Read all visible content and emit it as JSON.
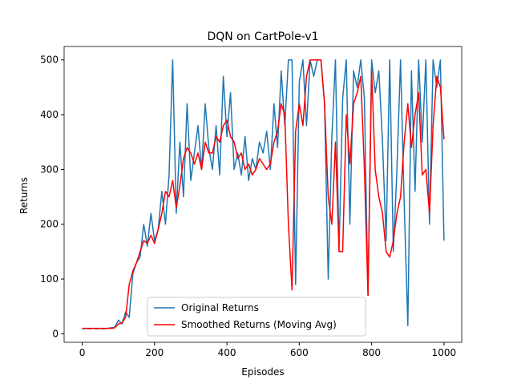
{
  "chart_data": {
    "type": "line",
    "title": "DQN on CartPole-v1",
    "xlabel": "Episodes",
    "ylabel": "Returns",
    "x": [
      0,
      10,
      20,
      30,
      40,
      50,
      60,
      70,
      80,
      90,
      100,
      110,
      120,
      130,
      140,
      150,
      160,
      170,
      180,
      190,
      200,
      210,
      220,
      230,
      240,
      250,
      260,
      270,
      280,
      290,
      300,
      310,
      320,
      330,
      340,
      350,
      360,
      370,
      380,
      390,
      400,
      410,
      420,
      430,
      440,
      450,
      460,
      470,
      480,
      490,
      500,
      510,
      520,
      530,
      540,
      550,
      560,
      570,
      580,
      590,
      600,
      610,
      620,
      630,
      640,
      650,
      660,
      670,
      680,
      690,
      700,
      710,
      720,
      730,
      740,
      750,
      760,
      770,
      780,
      790,
      800,
      810,
      820,
      830,
      840,
      850,
      860,
      870,
      880,
      890,
      900,
      910,
      920,
      930,
      940,
      950,
      960,
      970,
      980,
      990,
      1000
    ],
    "series": [
      {
        "name": "Original Returns",
        "color": "#1f77b4",
        "values": [
          9,
          10,
          9,
          10,
          9,
          10,
          9,
          10,
          11,
          12,
          25,
          18,
          40,
          30,
          110,
          130,
          140,
          200,
          160,
          220,
          170,
          190,
          260,
          200,
          290,
          500,
          220,
          350,
          250,
          420,
          280,
          330,
          380,
          300,
          420,
          340,
          300,
          380,
          290,
          470,
          360,
          440,
          300,
          330,
          290,
          360,
          280,
          320,
          300,
          350,
          330,
          370,
          300,
          420,
          340,
          480,
          380,
          500,
          500,
          90,
          460,
          500,
          380,
          500,
          470,
          500,
          500,
          420,
          100,
          360,
          500,
          150,
          430,
          500,
          200,
          480,
          450,
          500,
          430,
          70,
          500,
          440,
          480,
          350,
          170,
          500,
          150,
          300,
          500,
          240,
          15,
          480,
          260,
          500,
          350,
          500,
          200,
          500,
          450,
          500,
          170
        ]
      },
      {
        "name": "Smoothed Returns (Moving Avg)",
        "color": "#ff0000",
        "values": [
          10,
          10,
          10,
          10,
          10,
          10,
          10,
          10,
          10,
          11,
          18,
          20,
          30,
          90,
          115,
          130,
          150,
          170,
          165,
          180,
          165,
          190,
          220,
          260,
          250,
          280,
          230,
          270,
          320,
          340,
          330,
          310,
          330,
          300,
          350,
          330,
          330,
          360,
          350,
          380,
          390,
          360,
          350,
          320,
          330,
          300,
          310,
          290,
          300,
          320,
          310,
          300,
          310,
          350,
          370,
          420,
          400,
          200,
          80,
          370,
          420,
          380,
          470,
          500,
          500,
          500,
          500,
          420,
          250,
          200,
          350,
          150,
          150,
          400,
          310,
          420,
          440,
          470,
          300,
          70,
          480,
          300,
          250,
          220,
          150,
          140,
          170,
          220,
          250,
          350,
          420,
          340,
          400,
          440,
          290,
          300,
          220,
          380,
          470,
          450,
          355
        ]
      }
    ],
    "xlim": [
      -50,
      1049
    ],
    "ylim": [
      -15.5,
      524.5
    ],
    "xticks": [
      0,
      200,
      400,
      600,
      800,
      1000
    ],
    "yticks": [
      0,
      100,
      200,
      300,
      400,
      500
    ],
    "legend": "lower center"
  }
}
